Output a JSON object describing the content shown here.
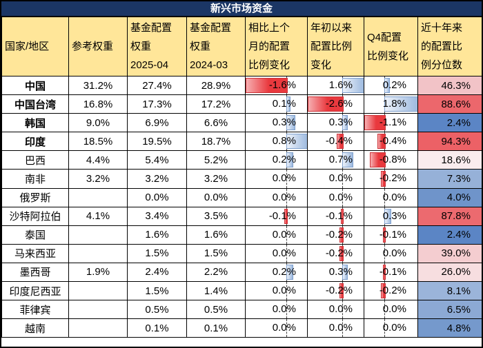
{
  "title": "新兴市场资金",
  "colors": {
    "title_bg": "#1B3665",
    "title_text": "#FFFFFF",
    "header_bg": "#FFE699",
    "grid_border": "#000000",
    "bar_positive_fill": "#9CB9DF",
    "bar_positive_border": "#7FA0CD",
    "bar_negative_fill": "#E9393E",
    "bar_negative_border": "#CC3338",
    "scale_low_blue": "#5B85C5",
    "scale_mid_white": "#FCFCFF",
    "scale_high_red": "#EC6166"
  },
  "chart_data": {
    "type": "table",
    "title": "新兴市场资金",
    "columns": [
      {
        "key": "country",
        "label": "国家/地区"
      },
      {
        "key": "ref_weight",
        "label": "参考权重"
      },
      {
        "key": "fund_weight_2025_04",
        "label": "基金配置\n权重\n2025-04"
      },
      {
        "key": "fund_weight_2024_03",
        "label": "基金配置\n权重\n2024-03"
      },
      {
        "key": "mom_change",
        "label": "相比上个\n月的配置\n比例变化",
        "bar_axis": {
          "min": -1.6,
          "max": 0.8
        }
      },
      {
        "key": "ytd_change",
        "label": "年初以来\n配置比例\n变化",
        "bar_axis": {
          "min": -2.6,
          "max": 1.6
        }
      },
      {
        "key": "q4_change",
        "label": "Q4配置\n比例变化",
        "bar_axis": {
          "min": -1.1,
          "max": 1.8
        }
      },
      {
        "key": "decade_percentile",
        "label": "近十年来\n的配置比\n例分位数",
        "color_scale": "blue-white-red"
      }
    ],
    "rows": [
      {
        "country": "中国",
        "bold": true,
        "ref_weight": "31.2%",
        "fund_weight_2025_04": "27.4%",
        "fund_weight_2024_03": "28.9%",
        "mom_change": -1.6,
        "ytd_change": 1.6,
        "q4_change": 0.2,
        "decade_percentile": 46.3,
        "percentile_bg": "#F2C3C7"
      },
      {
        "country": "中国台湾",
        "bold": true,
        "ref_weight": "16.8%",
        "fund_weight_2025_04": "17.3%",
        "fund_weight_2024_03": "17.2%",
        "mom_change": 0.1,
        "ytd_change": -2.6,
        "q4_change": 1.8,
        "decade_percentile": 88.6,
        "percentile_bg": "#EC676C"
      },
      {
        "country": "韩国",
        "bold": true,
        "ref_weight": "9.0%",
        "fund_weight_2025_04": "6.9%",
        "fund_weight_2024_03": "6.6%",
        "mom_change": 0.3,
        "ytd_change": 0.3,
        "q4_change": -1.1,
        "decade_percentile": 2.4,
        "percentile_bg": "#5B85C5"
      },
      {
        "country": "印度",
        "bold": true,
        "ref_weight": "18.5%",
        "fund_weight_2025_04": "19.5%",
        "fund_weight_2024_03": "18.7%",
        "mom_change": 0.8,
        "ytd_change": -0.4,
        "q4_change": -0.4,
        "decade_percentile": 94.3,
        "percentile_bg": "#EC6166"
      },
      {
        "country": "巴西",
        "bold": false,
        "ref_weight": "4.4%",
        "fund_weight_2025_04": "5.4%",
        "fund_weight_2024_03": "5.2%",
        "mom_change": 0.2,
        "ytd_change": 0.7,
        "q4_change": -0.8,
        "decade_percentile": 18.6,
        "percentile_bg": "#FAECEE"
      },
      {
        "country": "南非",
        "bold": false,
        "ref_weight": "3.2%",
        "fund_weight_2025_04": "3.2%",
        "fund_weight_2024_03": "3.2%",
        "mom_change": 0.0,
        "ytd_change": 0.0,
        "q4_change": -0.2,
        "decade_percentile": 7.3,
        "percentile_bg": "#96B1D8"
      },
      {
        "country": "俄罗斯",
        "bold": false,
        "ref_weight": "",
        "fund_weight_2025_04": "0.0%",
        "fund_weight_2024_03": "0.0%",
        "mom_change": 0.0,
        "ytd_change": 0.0,
        "q4_change": 0.0,
        "decade_percentile": 4.0,
        "percentile_bg": "#6F94CA"
      },
      {
        "country": "沙特阿拉伯",
        "bold": false,
        "ref_weight": "4.1%",
        "fund_weight_2025_04": "3.4%",
        "fund_weight_2024_03": "3.5%",
        "mom_change": -0.1,
        "ytd_change": -0.1,
        "q4_change": 0.3,
        "decade_percentile": 87.8,
        "percentile_bg": "#EC6A6F"
      },
      {
        "country": "泰国",
        "bold": false,
        "ref_weight": "",
        "fund_weight_2025_04": "1.6%",
        "fund_weight_2024_03": "1.6%",
        "mom_change": 0.0,
        "ytd_change": -0.2,
        "q4_change": -0.1,
        "decade_percentile": 2.4,
        "percentile_bg": "#5B85C5"
      },
      {
        "country": "马来西亚",
        "bold": false,
        "ref_weight": "",
        "fund_weight_2025_04": "1.5%",
        "fund_weight_2024_03": "1.5%",
        "mom_change": 0.0,
        "ytd_change": -0.2,
        "q4_change": 0.0,
        "decade_percentile": 39.0,
        "percentile_bg": "#F4CDD0"
      },
      {
        "country": "墨西哥",
        "bold": false,
        "ref_weight": "1.9%",
        "fund_weight_2025_04": "2.4%",
        "fund_weight_2024_03": "2.2%",
        "mom_change": 0.2,
        "ytd_change": 0.3,
        "q4_change": -0.1,
        "decade_percentile": 26.0,
        "percentile_bg": "#F7DEE0"
      },
      {
        "country": "印度尼西亚",
        "bold": false,
        "ref_weight": "",
        "fund_weight_2025_04": "1.5%",
        "fund_weight_2024_03": "1.4%",
        "mom_change": 0.0,
        "ytd_change": -0.2,
        "q4_change": -0.2,
        "decade_percentile": 8.1,
        "percentile_bg": "#9BB4DA"
      },
      {
        "country": "菲律宾",
        "bold": false,
        "ref_weight": "",
        "fund_weight_2025_04": "0.5%",
        "fund_weight_2024_03": "0.5%",
        "mom_change": 0.0,
        "ytd_change": 0.0,
        "q4_change": 0.0,
        "decade_percentile": 6.5,
        "percentile_bg": "#8CA9D4"
      },
      {
        "country": "越南",
        "bold": false,
        "ref_weight": "",
        "fund_weight_2025_04": "0.1%",
        "fund_weight_2024_03": "0.1%",
        "mom_change": 0.0,
        "ytd_change": 0.0,
        "q4_change": 0.0,
        "decade_percentile": 4.8,
        "percentile_bg": "#7599CC"
      }
    ]
  }
}
